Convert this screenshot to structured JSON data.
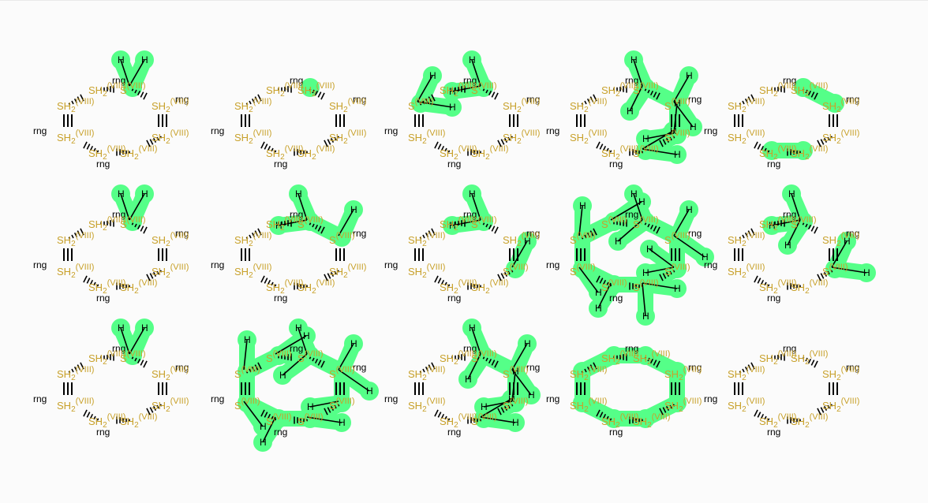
{
  "grid": {
    "rows": 3,
    "cols": 5
  },
  "colors": {
    "highlight": "#55ff88",
    "sulfur_label": "#c8a12a",
    "bond": "#000000",
    "background": "#fbfbfb"
  },
  "text": {
    "sulfur": "S",
    "sulfur_group": "SH",
    "subscript": "2",
    "oxidation": "(VIII)",
    "ring": "rng",
    "hydrogen": "H"
  },
  "molecules": [
    {
      "hl": [
        0
      ],
      "h": 2
    },
    {
      "hl": [
        0
      ],
      "h": 0
    },
    {
      "hl": [
        0,
        6
      ],
      "h": 4
    },
    {
      "hl": [
        0,
        1,
        2,
        3
      ],
      "h": 8
    },
    {
      "hl": [
        0,
        1,
        3,
        4
      ],
      "h": 0
    },
    {
      "hl": [
        0
      ],
      "h": 2
    },
    {
      "hl": [
        0,
        1
      ],
      "h": 3
    },
    {
      "hl": [
        0,
        2
      ],
      "h": 3
    },
    {
      "hl": [
        0,
        1,
        2,
        3,
        4,
        5,
        6,
        7
      ],
      "h": 12
    },
    {
      "hl": [
        0,
        2
      ],
      "h": 5
    },
    {
      "hl": [
        0
      ],
      "h": 2
    },
    {
      "hl": [
        0,
        1,
        2,
        3,
        4,
        5,
        6,
        7
      ],
      "h": 10
    },
    {
      "hl": [
        0,
        1,
        2,
        3
      ],
      "h": 8
    },
    {
      "hl": [
        0,
        1,
        2,
        3,
        4,
        5,
        6,
        7
      ],
      "h": 0
    },
    {
      "hl": [],
      "h": 0
    }
  ]
}
